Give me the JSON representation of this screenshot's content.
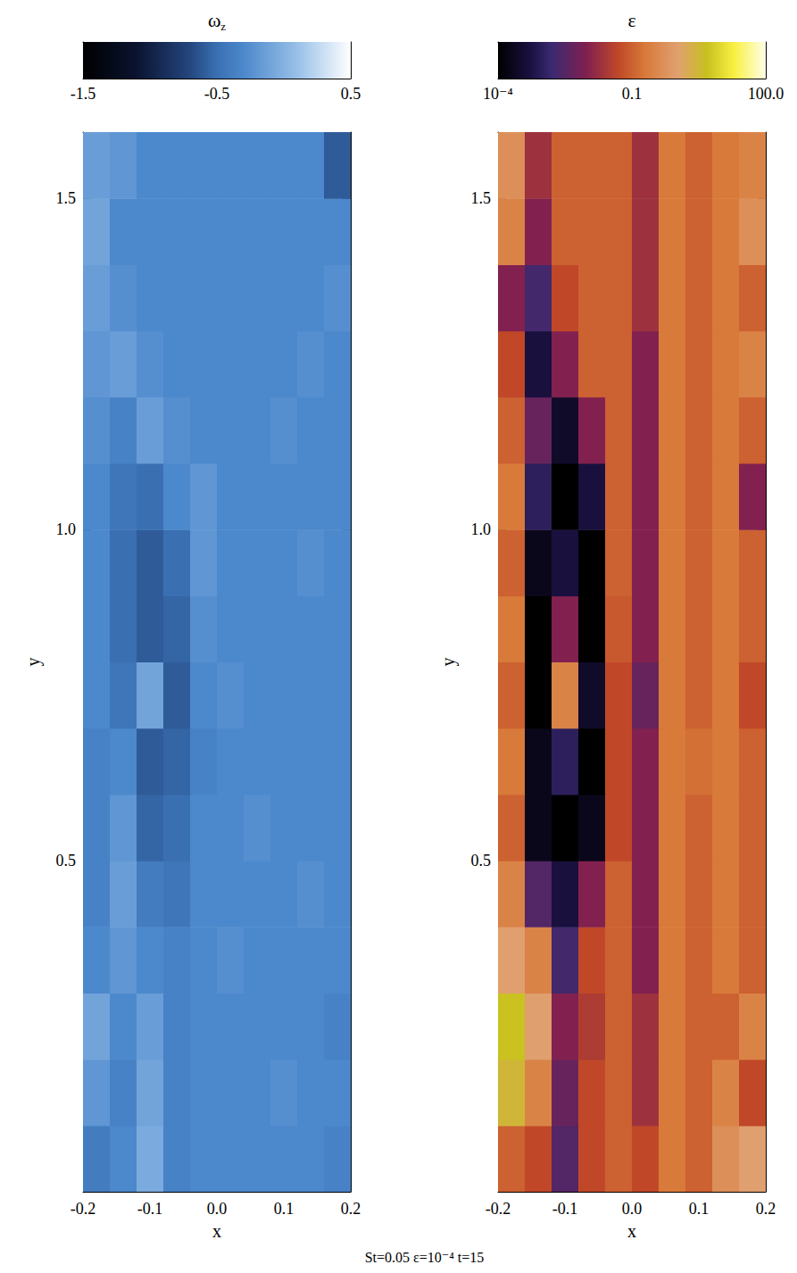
{
  "chart_data": [
    {
      "type": "heatmap",
      "colorbar": {
        "label": {
          "text": "ω",
          "subscript": "z"
        },
        "scale": "linear",
        "range": [
          -1.5,
          0.5
        ],
        "ticks": [
          -1.5,
          -0.5,
          0.5
        ]
      },
      "x_label": "x",
      "y_label": "y",
      "xlim": [
        -0.2,
        0.2
      ],
      "xticks": [
        -0.2,
        -0.1,
        {
          "value": 0,
          "label": "0.0"
        },
        0.1,
        0.2
      ],
      "ylim": [
        0,
        1.6
      ],
      "yticks": [
        0.5,
        {
          "value": 1,
          "label": "1.0"
        },
        1.5
      ],
      "x_edges": [
        -0.2,
        -0.16,
        -0.12,
        -0.08,
        -0.04,
        0,
        0.04,
        0.08,
        0.12,
        0.16,
        0.2
      ],
      "y_edges": [
        0,
        0.1,
        0.2,
        0.3,
        0.4,
        0.5,
        0.6,
        0.7,
        0.8,
        0.9,
        1.0,
        1.1,
        1.2,
        1.3,
        1.4,
        1.5,
        1.6
      ],
      "cells": [
        [
          -0.4,
          -0.3,
          -0.05,
          -0.35,
          -0.3,
          -0.3,
          -0.3,
          -0.3,
          -0.3,
          -0.35
        ],
        [
          -0.2,
          -0.35,
          -0.1,
          -0.35,
          -0.3,
          -0.3,
          -0.3,
          -0.25,
          -0.3,
          -0.3
        ],
        [
          -0.1,
          -0.3,
          -0.15,
          -0.35,
          -0.3,
          -0.3,
          -0.3,
          -0.3,
          -0.3,
          -0.35
        ],
        [
          -0.3,
          -0.2,
          -0.3,
          -0.35,
          -0.3,
          -0.25,
          -0.3,
          -0.3,
          -0.3,
          -0.3
        ],
        [
          -0.35,
          -0.15,
          -0.4,
          -0.45,
          -0.3,
          -0.3,
          -0.3,
          -0.3,
          -0.25,
          -0.3
        ],
        [
          -0.35,
          -0.2,
          -0.55,
          -0.5,
          -0.3,
          -0.3,
          -0.25,
          -0.3,
          -0.3,
          -0.3
        ],
        [
          -0.35,
          -0.3,
          -0.6,
          -0.55,
          -0.35,
          -0.3,
          -0.3,
          -0.3,
          -0.3,
          -0.3
        ],
        [
          -0.3,
          -0.45,
          -0.1,
          -0.6,
          -0.3,
          -0.25,
          -0.3,
          -0.3,
          -0.3,
          -0.3
        ],
        [
          -0.3,
          -0.5,
          -0.6,
          -0.55,
          -0.25,
          -0.3,
          -0.3,
          -0.3,
          -0.3,
          -0.3
        ],
        [
          -0.3,
          -0.5,
          -0.6,
          -0.5,
          -0.2,
          -0.3,
          -0.3,
          -0.3,
          -0.25,
          -0.3
        ],
        [
          -0.3,
          -0.45,
          -0.5,
          -0.3,
          -0.2,
          -0.3,
          -0.3,
          -0.3,
          -0.3,
          -0.3
        ],
        [
          -0.25,
          -0.35,
          -0.15,
          -0.25,
          -0.3,
          -0.3,
          -0.3,
          -0.25,
          -0.3,
          -0.3
        ],
        [
          -0.2,
          -0.15,
          -0.25,
          -0.3,
          -0.3,
          -0.3,
          -0.3,
          -0.3,
          -0.25,
          -0.3
        ],
        [
          -0.15,
          -0.25,
          -0.3,
          -0.3,
          -0.3,
          -0.3,
          -0.3,
          -0.3,
          -0.3,
          -0.25
        ],
        [
          -0.1,
          -0.3,
          -0.3,
          -0.3,
          -0.3,
          -0.3,
          -0.3,
          -0.3,
          -0.3,
          -0.3
        ],
        [
          -0.15,
          -0.2,
          -0.3,
          -0.3,
          -0.3,
          -0.3,
          -0.3,
          -0.3,
          -0.3,
          -0.6
        ]
      ]
    },
    {
      "type": "heatmap",
      "colorbar": {
        "label": {
          "text": "ε"
        },
        "scale": "log",
        "range": [
          0.0001,
          100
        ],
        "ticks": [
          {
            "value": 0.0001,
            "label": "10⁻⁴"
          },
          0.1,
          {
            "value": 100,
            "label": "100.0"
          }
        ]
      },
      "x_label": "x",
      "y_label": "y",
      "xlim": [
        -0.2,
        0.2
      ],
      "xticks": [
        -0.2,
        -0.1,
        {
          "value": 0,
          "label": "0.0"
        },
        0.1,
        0.2
      ],
      "ylim": [
        0,
        1.6
      ],
      "yticks": [
        0.5,
        {
          "value": 1,
          "label": "1.0"
        },
        1.5
      ],
      "x_edges": [
        -0.2,
        -0.16,
        -0.12,
        -0.08,
        -0.04,
        0,
        0.04,
        0.08,
        0.12,
        0.16,
        0.2
      ],
      "y_edges": [
        0,
        0.1,
        0.2,
        0.3,
        0.4,
        0.5,
        0.6,
        0.7,
        0.8,
        0.9,
        1.0,
        1.1,
        1.2,
        1.3,
        1.4,
        1.5,
        1.6
      ],
      "cells": [
        [
          0.1,
          0.05,
          0.003,
          0.05,
          0.1,
          0.05,
          0.2,
          0.1,
          0.5,
          1
        ],
        [
          3,
          0.3,
          0.005,
          0.05,
          0.1,
          0.02,
          0.2,
          0.1,
          0.3,
          0.05
        ],
        [
          5,
          1,
          0.01,
          0.03,
          0.1,
          0.02,
          0.2,
          0.1,
          0.1,
          0.3
        ],
        [
          1,
          0.3,
          0.002,
          0.05,
          0.1,
          0.01,
          0.2,
          0.1,
          0.2,
          0.1
        ],
        [
          0.3,
          0.003,
          0.0005,
          0.01,
          0.1,
          0.01,
          0.2,
          0.1,
          0.2,
          0.1
        ],
        [
          0.1,
          0.0002,
          0.0001,
          0.0002,
          0.05,
          0.01,
          0.2,
          0.1,
          0.2,
          0.1
        ],
        [
          0.2,
          0.0002,
          0.001,
          0.0001,
          0.05,
          0.01,
          0.2,
          0.15,
          0.2,
          0.1
        ],
        [
          0.1,
          0.0001,
          0.3,
          0.0003,
          0.05,
          0.005,
          0.2,
          0.1,
          0.2,
          0.05
        ],
        [
          0.2,
          0.0001,
          0.01,
          0.0001,
          0.08,
          0.01,
          0.2,
          0.1,
          0.2,
          0.1
        ],
        [
          0.1,
          0.0002,
          0.0005,
          0.0001,
          0.1,
          0.01,
          0.2,
          0.1,
          0.2,
          0.1
        ],
        [
          0.2,
          0.001,
          0.0001,
          0.0005,
          0.1,
          0.01,
          0.2,
          0.1,
          0.2,
          0.01
        ],
        [
          0.1,
          0.005,
          0.0003,
          0.01,
          0.1,
          0.01,
          0.2,
          0.1,
          0.2,
          0.1
        ],
        [
          0.05,
          0.0005,
          0.01,
          0.1,
          0.1,
          0.01,
          0.2,
          0.1,
          0.2,
          0.3
        ],
        [
          0.01,
          0.002,
          0.05,
          0.1,
          0.1,
          0.02,
          0.2,
          0.1,
          0.2,
          0.1
        ],
        [
          0.3,
          0.01,
          0.1,
          0.1,
          0.1,
          0.02,
          0.2,
          0.1,
          0.2,
          0.5
        ],
        [
          0.5,
          0.02,
          0.1,
          0.1,
          0.1,
          0.02,
          0.2,
          0.1,
          0.2,
          0.3
        ]
      ]
    }
  ],
  "caption": "St=0.05 ε=10⁻⁴ t=15"
}
